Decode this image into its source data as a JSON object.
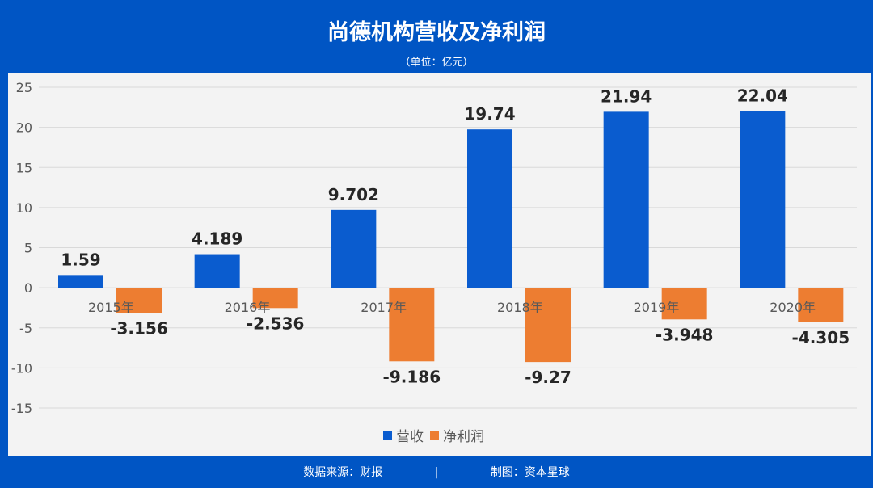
{
  "header": {
    "title": "尚德机构营收及净利润",
    "unit": "（单位：亿元）"
  },
  "footer": {
    "source": "数据来源：财报",
    "separator": "|",
    "credit": "制图：资本星球"
  },
  "watermark": "资本星球",
  "colors": {
    "background": "#0055c4",
    "revenue": "#0a5ccf",
    "net_profit": "#ed7d31"
  },
  "chart_data": {
    "type": "bar",
    "title": "尚德机构营收及净利润",
    "subtitle": "（单位：亿元）",
    "categories": [
      "2015年",
      "2016年",
      "2017年",
      "2018年",
      "2019年",
      "2020年"
    ],
    "series": [
      {
        "name": "营收",
        "values": [
          1.59,
          4.189,
          9.702,
          19.74,
          21.94,
          22.04
        ],
        "labels": [
          "1.59",
          "4.189",
          "9.702",
          "19.74",
          "21.94",
          "22.04"
        ]
      },
      {
        "name": "净利润",
        "values": [
          -3.156,
          -2.536,
          -9.186,
          -9.27,
          -3.948,
          -4.305
        ],
        "labels": [
          "-3.156",
          "-2.536",
          "-9.186",
          "-9.27",
          "-3.948",
          "-4.305"
        ]
      }
    ],
    "ylim": [
      -15,
      25
    ],
    "yticks": [
      25,
      20,
      15,
      10,
      5,
      0,
      -5,
      -10,
      -15
    ],
    "grid": true,
    "legend": "bottom"
  }
}
